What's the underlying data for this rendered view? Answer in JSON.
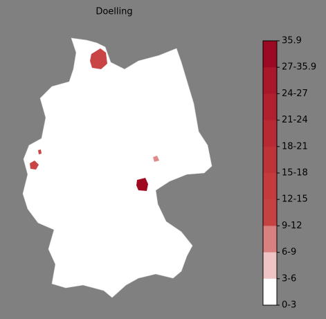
{
  "title": "Doelling",
  "colorbar": {
    "labels": [
      "35.9",
      "27-35.9",
      "24-27",
      "21-24",
      "18-21",
      "15-18",
      "12-15",
      "9-12",
      "6-9",
      "3-6",
      "0-3"
    ],
    "colors": [
      "#9b0a22",
      "#a8172a",
      "#b0202e",
      "#b82a33",
      "#be3337",
      "#c33b3c",
      "#c64142",
      "#d98080",
      "#eec4c4",
      "#ffffff"
    ]
  }
}
